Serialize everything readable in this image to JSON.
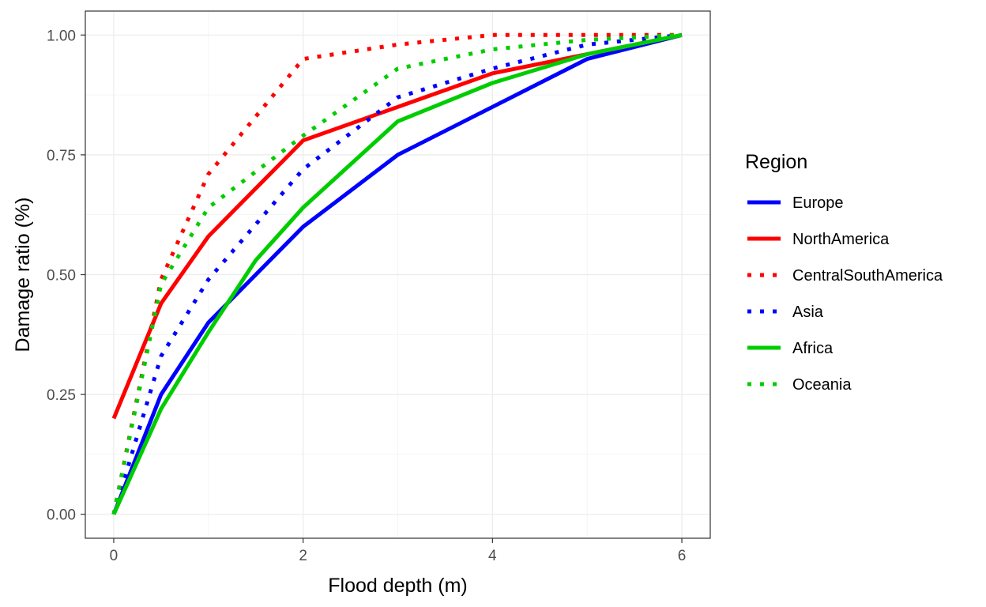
{
  "chart_data": {
    "type": "line",
    "xlabel": "Flood depth (m)",
    "ylabel": "Damage ratio (%)",
    "xlim": [
      -0.3,
      6.3
    ],
    "ylim": [
      -0.05,
      1.05
    ],
    "x_ticks": [
      0,
      2,
      4,
      6
    ],
    "y_ticks": [
      0.0,
      0.25,
      0.5,
      0.75,
      1.0
    ],
    "x_tick_labels": [
      "0",
      "2",
      "4",
      "6"
    ],
    "y_tick_labels": [
      "0.00",
      "0.25",
      "0.50",
      "0.75",
      "1.00"
    ],
    "grid": true,
    "legend": {
      "title": "Region",
      "position": "right"
    },
    "series": [
      {
        "name": "Europe",
        "color": "#0000FF",
        "style": "solid",
        "x": [
          0,
          0.5,
          1,
          2,
          3,
          4,
          5,
          6
        ],
        "values": [
          0.0,
          0.25,
          0.4,
          0.6,
          0.75,
          0.85,
          0.95,
          1.0
        ]
      },
      {
        "name": "NorthAmerica",
        "color": "#FF0000",
        "style": "solid",
        "x": [
          0,
          0.5,
          1,
          2,
          3,
          4,
          5,
          6
        ],
        "values": [
          0.2,
          0.44,
          0.58,
          0.78,
          0.85,
          0.92,
          0.96,
          1.0
        ]
      },
      {
        "name": "CentralSouthAmerica",
        "color": "#FF0000",
        "style": "dotted",
        "x": [
          0,
          0.5,
          1,
          2,
          3,
          4,
          5,
          6
        ],
        "values": [
          0.0,
          0.49,
          0.71,
          0.95,
          0.98,
          1.0,
          1.0,
          1.0
        ]
      },
      {
        "name": "Asia",
        "color": "#0000FF",
        "style": "dotted",
        "x": [
          0,
          0.5,
          1,
          2,
          3,
          4,
          5,
          6
        ],
        "values": [
          0.0,
          0.33,
          0.49,
          0.72,
          0.87,
          0.93,
          0.98,
          1.0
        ]
      },
      {
        "name": "Africa",
        "color": "#00CD00",
        "style": "solid",
        "x": [
          0,
          0.5,
          1,
          1.5,
          2,
          3,
          4,
          5,
          6
        ],
        "values": [
          0.0,
          0.22,
          0.38,
          0.53,
          0.64,
          0.82,
          0.9,
          0.96,
          1.0
        ]
      },
      {
        "name": "Oceania",
        "color": "#00CD00",
        "style": "dotted",
        "x": [
          0,
          0.5,
          1,
          2,
          3,
          4,
          5,
          6
        ],
        "values": [
          0.0,
          0.48,
          0.64,
          0.79,
          0.93,
          0.97,
          0.99,
          1.0
        ]
      }
    ]
  }
}
